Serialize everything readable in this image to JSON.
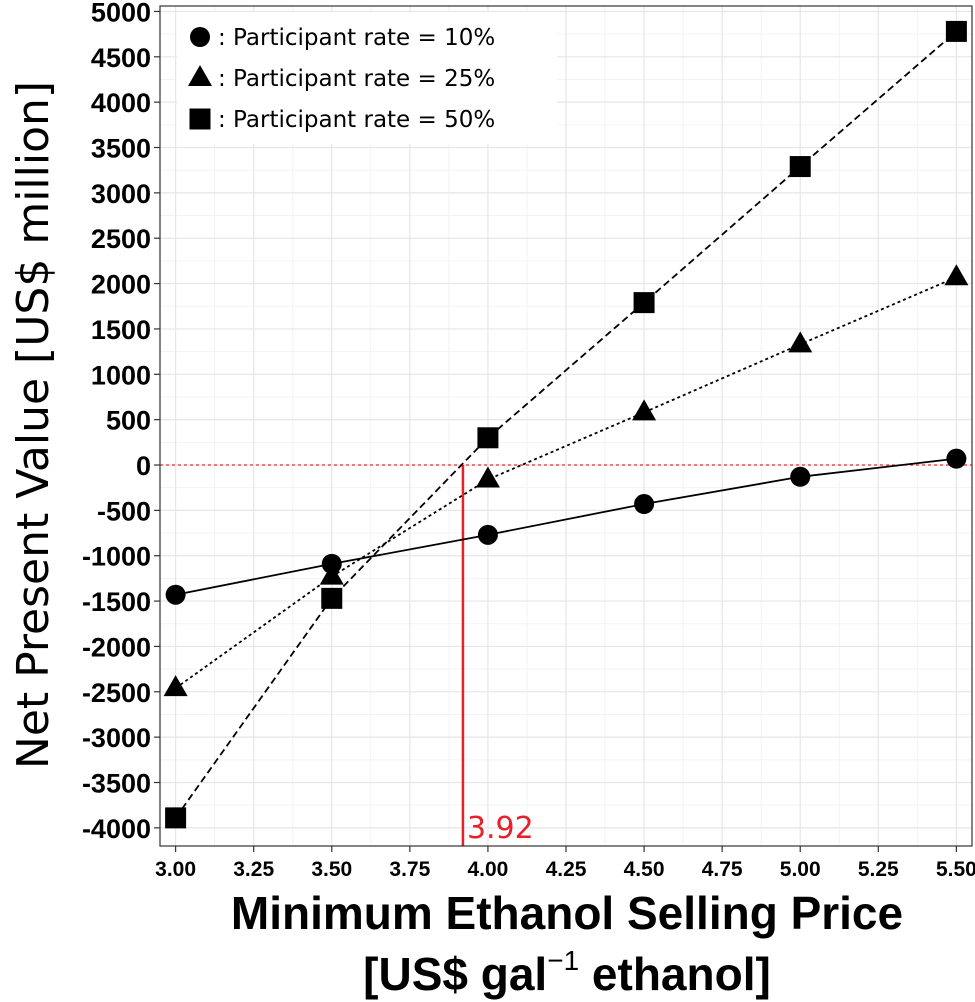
{
  "chart_data": {
    "type": "line",
    "x": [
      3.0,
      3.5,
      4.0,
      4.5,
      5.0,
      5.5
    ],
    "series": [
      {
        "name": ": Participant rate = 10%",
        "marker": "circle",
        "line_style": "solid",
        "values": [
          -1430,
          -1090,
          -770,
          -430,
          -130,
          70
        ]
      },
      {
        "name": ": Participant rate = 25%",
        "marker": "triangle",
        "line_style": "dotted",
        "values": [
          -2460,
          -1230,
          -160,
          580,
          1330,
          2070
        ]
      },
      {
        "name": ": Participant rate = 50%",
        "marker": "square",
        "line_style": "dashed",
        "values": [
          -3890,
          -1470,
          300,
          1790,
          3290,
          4780
        ]
      }
    ],
    "xlim": [
      2.95,
      5.55
    ],
    "ylim": [
      -4200,
      5060
    ],
    "xticks": [
      3.0,
      3.25,
      3.5,
      3.75,
      4.0,
      4.25,
      4.5,
      4.75,
      5.0,
      5.25,
      5.5
    ],
    "xtick_labels": [
      "3.00",
      "3.25",
      "3.50",
      "3.75",
      "4.00",
      "4.25",
      "4.50",
      "4.75",
      "5.00",
      "5.25",
      "5.50"
    ],
    "yticks": [
      -4000,
      -3500,
      -3000,
      -2500,
      -2000,
      -1500,
      -1000,
      -500,
      0,
      500,
      1000,
      1500,
      2000,
      2500,
      3000,
      3500,
      4000,
      4500,
      5000
    ],
    "ytick_labels": [
      "-4000",
      "-3500",
      "-3000",
      "-2500",
      "-2000",
      "-1500",
      "-1000",
      "-500",
      "0",
      "500",
      "1000",
      "1500",
      "2000",
      "2500",
      "3000",
      "3500",
      "4000",
      "4500",
      "5000"
    ],
    "xlabel_line1": "Minimum Ethanol Selling Price",
    "xlabel_line2_a": "[US$ gal",
    "xlabel_line2_sup": "−1",
    "xlabel_line2_b": " ethanol]",
    "ylabel": "Net Present Value [US$ million]",
    "grid": true,
    "legend_position": "top-left",
    "reference_lines": {
      "horizontal_y": 0,
      "horizontal_color": "#e03030",
      "vertical_x": 3.92,
      "vertical_color": "#e8202a"
    },
    "annotation": {
      "text": "3.92",
      "x": 3.92,
      "color": "#e8202a"
    }
  }
}
